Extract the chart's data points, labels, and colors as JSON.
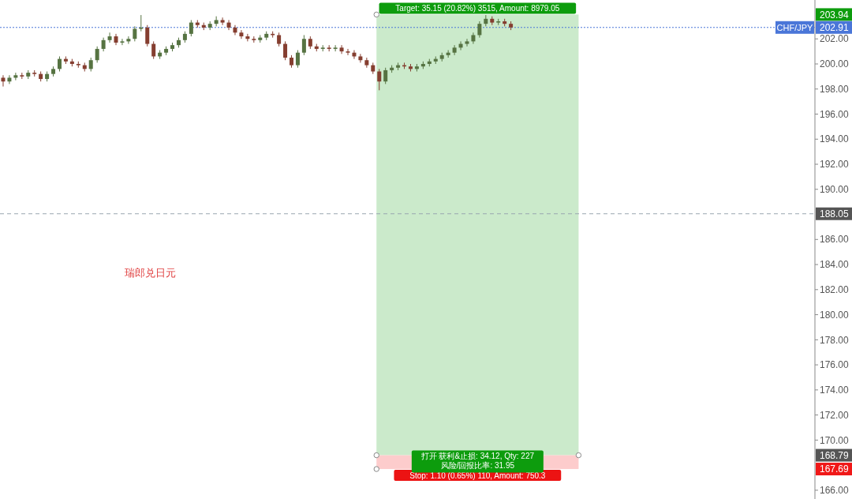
{
  "chart_data": {
    "type": "candlestick",
    "categories": [
      null,
      null,
      null,
      null,
      null,
      null,
      null,
      null,
      null,
      null,
      null,
      null,
      null,
      null,
      null,
      null,
      null,
      null,
      null,
      null,
      null,
      null,
      null,
      null,
      null,
      null,
      null,
      null,
      null,
      null,
      null,
      null,
      null,
      null,
      null,
      null,
      null,
      null,
      null,
      null,
      null,
      null,
      null,
      null,
      null,
      null,
      null,
      null,
      null,
      null,
      null,
      null,
      null,
      null,
      null,
      null,
      null,
      null,
      null,
      null,
      null,
      null,
      null,
      null,
      null,
      null,
      null,
      null,
      null,
      null,
      null,
      null,
      null,
      null,
      null,
      null,
      null,
      null,
      null,
      null,
      null,
      null,
      null,
      null,
      null,
      null,
      null,
      null,
      null,
      null,
      null,
      null,
      null,
      null,
      null,
      null,
      null,
      null,
      null,
      null,
      null,
      null,
      null,
      null,
      null,
      null,
      null,
      null,
      null,
      null,
      null,
      null,
      null,
      null,
      null,
      null,
      null,
      null,
      null,
      null,
      null,
      null,
      null,
      null,
      null,
      null,
      null,
      null,
      null,
      null
    ],
    "series": [
      {
        "color": "#567342",
        "ohlc": [
          null,
          [
            198.6,
            199.1,
            198.4,
            198.9
          ],
          [
            198.9,
            199.3,
            198.7,
            199.1
          ],
          null,
          [
            199.0,
            199.5,
            198.8,
            199.3
          ],
          null,
          null,
          [
            198.8,
            199.4,
            198.6,
            199.2
          ],
          [
            199.2,
            199.8,
            199.0,
            199.6
          ],
          [
            199.6,
            200.6,
            199.4,
            200.4
          ],
          null,
          null,
          null,
          null,
          [
            199.6,
            200.5,
            199.4,
            200.3
          ],
          [
            200.3,
            201.4,
            200.1,
            201.2
          ],
          [
            201.2,
            202.1,
            201.0,
            201.9
          ],
          [
            201.9,
            202.5,
            201.7,
            202.2
          ],
          null,
          [
            201.7,
            202.0,
            201.5,
            201.8
          ],
          [
            201.8,
            202.2,
            201.6,
            202.0
          ],
          [
            202.0,
            203.0,
            201.8,
            202.8
          ],
          [
            202.8,
            203.9,
            202.6,
            202.9
          ],
          null,
          null,
          [
            200.6,
            201.1,
            200.4,
            200.9
          ],
          [
            200.9,
            201.4,
            200.7,
            201.2
          ],
          [
            201.2,
            201.7,
            201.0,
            201.5
          ],
          [
            201.5,
            202.1,
            201.3,
            201.9
          ],
          [
            201.9,
            202.6,
            201.7,
            202.4
          ],
          [
            202.4,
            203.5,
            202.2,
            203.3
          ],
          null,
          null,
          [
            202.9,
            203.4,
            202.7,
            203.2
          ],
          [
            203.2,
            203.8,
            203.0,
            203.5
          ],
          null,
          null,
          null,
          null,
          null,
          null,
          [
            201.9,
            202.3,
            201.7,
            202.1
          ],
          [
            202.1,
            202.6,
            201.9,
            202.4
          ],
          null,
          null,
          null,
          null,
          [
            199.9,
            201.1,
            199.7,
            200.9
          ],
          [
            200.9,
            202.3,
            200.7,
            202.0
          ],
          null,
          null,
          [
            201.2,
            201.5,
            201.0,
            201.3
          ],
          null,
          [
            201.2,
            201.5,
            201.0,
            201.3
          ],
          null,
          null,
          null,
          null,
          null,
          null,
          null,
          [
            198.6,
            199.7,
            198.4,
            199.5
          ],
          [
            199.5,
            199.9,
            199.3,
            199.7
          ],
          [
            199.7,
            200.1,
            199.5,
            199.9
          ],
          null,
          null,
          [
            199.6,
            200.0,
            199.4,
            199.8
          ],
          [
            199.8,
            200.2,
            199.6,
            200.0
          ],
          [
            200.0,
            200.4,
            199.8,
            200.2
          ],
          [
            200.2,
            200.6,
            200.0,
            200.4
          ],
          [
            200.4,
            200.9,
            200.2,
            200.7
          ],
          [
            200.7,
            201.1,
            200.5,
            200.9
          ],
          [
            200.9,
            201.5,
            200.7,
            201.3
          ],
          [
            201.3,
            201.8,
            201.1,
            201.6
          ],
          [
            201.6,
            202.0,
            201.4,
            201.8
          ],
          [
            201.8,
            202.5,
            201.6,
            202.3
          ],
          [
            202.3,
            203.4,
            202.1,
            203.2
          ],
          [
            203.2,
            203.9,
            203.0,
            203.6
          ],
          null,
          [
            203.3,
            203.6,
            203.1,
            203.4
          ],
          null,
          null,
          null,
          null,
          null,
          null,
          null,
          null,
          null,
          null,
          null,
          null,
          null,
          null,
          null,
          null,
          null,
          null,
          null,
          null,
          null,
          null,
          null,
          null,
          null,
          null,
          null,
          null,
          null,
          null,
          null,
          null,
          null,
          null,
          null,
          null,
          null,
          null,
          null,
          null,
          null,
          null,
          null,
          null,
          null,
          null,
          null,
          null,
          null,
          null
        ]
      },
      {
        "color": "#853e30",
        "ohlc": [
          [
            198.9,
            199.1,
            198.2,
            198.6
          ],
          null,
          null,
          [
            199.1,
            199.3,
            198.8,
            199.0
          ],
          null,
          [
            199.3,
            199.5,
            199.0,
            199.2
          ],
          [
            199.2,
            199.4,
            198.6,
            198.8
          ],
          null,
          null,
          null,
          [
            200.4,
            200.6,
            200.0,
            200.2
          ],
          [
            200.2,
            200.4,
            199.8,
            200.0
          ],
          [
            200.0,
            200.2,
            199.7,
            199.9
          ],
          [
            199.9,
            200.1,
            199.4,
            199.6
          ],
          null,
          null,
          null,
          null,
          [
            202.2,
            202.4,
            201.5,
            201.7
          ],
          null,
          null,
          null,
          null,
          [
            202.9,
            203.1,
            201.4,
            201.6
          ],
          [
            201.6,
            201.8,
            200.4,
            200.6
          ],
          null,
          null,
          null,
          null,
          null,
          null,
          [
            203.3,
            203.5,
            202.9,
            203.1
          ],
          [
            203.1,
            203.3,
            202.7,
            202.9
          ],
          null,
          null,
          [
            203.5,
            203.7,
            203.1,
            203.3
          ],
          [
            203.3,
            203.5,
            202.7,
            202.9
          ],
          [
            202.9,
            203.1,
            202.3,
            202.5
          ],
          [
            202.5,
            202.7,
            202.0,
            202.2
          ],
          [
            202.2,
            202.4,
            201.8,
            202.0
          ],
          [
            202.0,
            202.2,
            201.7,
            201.9
          ],
          null,
          null,
          [
            202.4,
            202.6,
            202.1,
            202.3
          ],
          [
            202.3,
            202.5,
            201.4,
            201.6
          ],
          [
            201.6,
            201.8,
            200.3,
            200.5
          ],
          [
            200.5,
            200.7,
            199.7,
            199.9
          ],
          null,
          null,
          [
            202.0,
            202.2,
            201.2,
            201.4
          ],
          [
            201.4,
            201.6,
            201.0,
            201.2
          ],
          null,
          [
            201.3,
            201.5,
            201.0,
            201.2
          ],
          null,
          [
            201.3,
            201.5,
            200.8,
            201.0
          ],
          [
            201.0,
            201.2,
            200.7,
            200.9
          ],
          [
            200.9,
            201.1,
            200.4,
            200.6
          ],
          [
            200.6,
            200.8,
            200.1,
            200.3
          ],
          [
            200.3,
            200.5,
            199.7,
            199.9
          ],
          [
            199.9,
            200.1,
            199.2,
            199.4
          ],
          [
            199.4,
            199.6,
            197.9,
            198.6
          ],
          null,
          null,
          null,
          [
            199.9,
            200.1,
            199.6,
            199.8
          ],
          [
            199.8,
            200.0,
            199.4,
            199.6
          ],
          null,
          null,
          null,
          null,
          null,
          null,
          null,
          null,
          null,
          null,
          null,
          null,
          [
            203.6,
            203.8,
            203.1,
            203.3
          ],
          null,
          [
            203.4,
            203.6,
            203.0,
            203.2
          ],
          [
            203.2,
            203.4,
            202.7,
            202.91
          ],
          null,
          null,
          null,
          null,
          null,
          null,
          null,
          null,
          null,
          null,
          null,
          null,
          null,
          null,
          null,
          null,
          null,
          null,
          null,
          null,
          null,
          null,
          null,
          null,
          null,
          null,
          null,
          null,
          null,
          null,
          null,
          null,
          null,
          null,
          null,
          null,
          null,
          null,
          null,
          null,
          null,
          null,
          null,
          null,
          null,
          null,
          null,
          null
        ]
      }
    ],
    "ylim": [
      165.3,
      205.1
    ],
    "yticks": [
      {
        "value": 166,
        "label": "166.00"
      },
      {
        "value": 167.69,
        "label": "167.69"
      },
      {
        "value": 168.79,
        "label": "168.79"
      },
      {
        "value": 170,
        "label": "170.00"
      },
      {
        "value": 172,
        "label": "172.00"
      },
      {
        "value": 174,
        "label": "174.00"
      },
      {
        "value": 176,
        "label": "176.00"
      },
      {
        "value": 178,
        "label": "178.00"
      },
      {
        "value": 180,
        "label": "180.00"
      },
      {
        "value": 182,
        "label": "182.00"
      },
      {
        "value": 184,
        "label": "184.00"
      },
      {
        "value": 186,
        "label": "186.00"
      },
      {
        "value": 188.05,
        "label": "188.05"
      },
      {
        "value": 190,
        "label": "190.00"
      },
      {
        "value": 192,
        "label": "192.00"
      },
      {
        "value": 194,
        "label": "194.00"
      },
      {
        "value": 196,
        "label": "196.00"
      },
      {
        "value": 198,
        "label": "198.00"
      },
      {
        "value": 200,
        "label": "200.00"
      },
      {
        "value": 202,
        "label": "202.00"
      },
      {
        "value": 202.91,
        "label": "202.91"
      },
      {
        "value": 203.94,
        "label": "203.94"
      }
    ],
    "tick_labels": "y",
    "bands": [
      {
        "axis": "y",
        "from": 168.79,
        "to": 203.94,
        "label": "Target: 35.15 (20.82%) 3515, Amount: 8979.05",
        "color": "#cbeacb"
      },
      {
        "axis": "y",
        "from": 167.69,
        "to": 168.79,
        "label": "Stop: 1.10 (0.65%) 110, Amount: 750.3",
        "color": "#fdcccc"
      }
    ],
    "ref_lines": [
      {
        "axis": "y",
        "value": 202.91,
        "label": "CHF/JPY",
        "color": "#4a76d8",
        "line_style": "dotted"
      },
      {
        "axis": "y",
        "value": 188.05,
        "color": "#9aa7b0",
        "line_style": "dashed"
      }
    ],
    "annotations": [
      "瑞郎兑日元",
      "打开 获利&止损: 34.12, Qty: 227",
      "风险/回报比率: 31.95"
    ]
  }
}
